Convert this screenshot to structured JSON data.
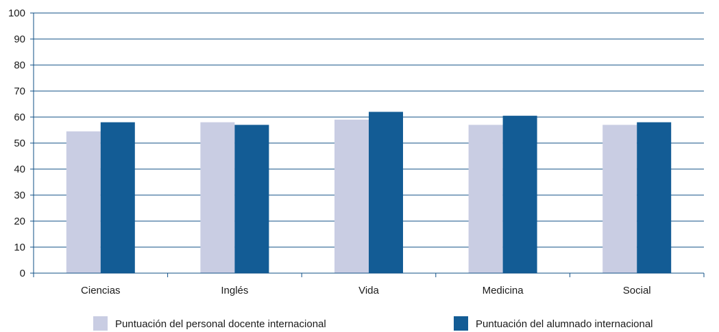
{
  "chart_data": {
    "type": "bar",
    "categories": [
      "Ciencias",
      "Inglés",
      "Vida",
      "Medicina",
      "Social"
    ],
    "series": [
      {
        "name": "Puntuación del personal docente internacional",
        "values": [
          54.5,
          58,
          59,
          57,
          57
        ],
        "color": "#c9cde3"
      },
      {
        "name": "Puntuación del alumnado internacional",
        "values": [
          58,
          57,
          62,
          60.5,
          58
        ],
        "color": "#135c95"
      }
    ],
    "ylim": [
      0,
      100
    ],
    "yticks": [
      0,
      10,
      20,
      30,
      40,
      50,
      60,
      70,
      80,
      90,
      100
    ],
    "grid": true,
    "grid_color": "#0f4f86",
    "legend_position": "bottom",
    "xlabel": "",
    "ylabel": ""
  }
}
